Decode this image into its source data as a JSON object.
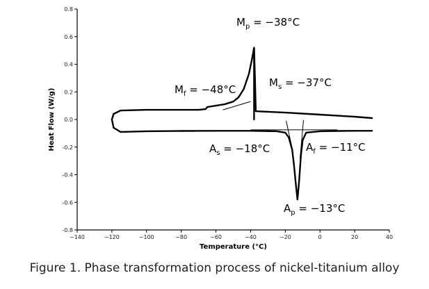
{
  "caption": "Figure 1. Phase transformation process of nickel-titanium alloy",
  "chart_data": {
    "type": "line",
    "title": "",
    "xlabel": "Temperature (°C)",
    "ylabel": "Heat Flow (W/g)",
    "xlim": [
      -140,
      40
    ],
    "ylim": [
      -0.8,
      0.8
    ],
    "xticks": [
      -140,
      -120,
      -100,
      -80,
      -60,
      -40,
      -20,
      0,
      20,
      40
    ],
    "xtick_labels": [
      "−140",
      "−120",
      "−100",
      "−80",
      "−60",
      "−40",
      "−20",
      "0",
      "20",
      "40"
    ],
    "yticks": [
      0.8,
      0.6,
      0.4,
      0.2,
      0.0,
      -0.2,
      -0.4,
      -0.6,
      -0.8
    ],
    "ytick_labels": [
      "0.8",
      "0.6",
      "0.4",
      "0.2",
      "0.0",
      "-0.2",
      "-0.4",
      "-0.6",
      "-0.8"
    ],
    "grid": false,
    "series": [
      {
        "x": [
          30,
          20,
          0,
          -20,
          -37,
          -37.5,
          -38,
          -39,
          -41,
          -44,
          -47,
          -50,
          -55,
          -60,
          -65,
          -66,
          -70,
          -80,
          -100,
          -115,
          -119,
          -120,
          -119,
          -115
        ],
        "y": [
          0.01,
          0.02,
          0.035,
          0.05,
          0.06,
          0.3,
          0.52,
          0.45,
          0.33,
          0.22,
          0.16,
          0.13,
          0.11,
          0.1,
          0.09,
          0.075,
          0.07,
          0.07,
          0.07,
          0.065,
          0.04,
          0.0,
          -0.06,
          -0.09
        ]
      },
      {
        "x": [
          -115,
          -100,
          -80,
          -60,
          -40,
          -25,
          -20,
          -18,
          -16,
          -15,
          -14,
          -13,
          -12,
          -11,
          -10,
          -8,
          0,
          10,
          20,
          30
        ],
        "y": [
          -0.09,
          -0.085,
          -0.083,
          -0.082,
          -0.082,
          -0.085,
          -0.095,
          -0.13,
          -0.22,
          -0.33,
          -0.46,
          -0.58,
          -0.44,
          -0.26,
          -0.15,
          -0.095,
          -0.085,
          -0.083,
          -0.082,
          -0.082
        ]
      },
      {
        "x": [
          -38,
          -38,
          -38
        ],
        "y": [
          0.52,
          0.2,
          0.0
        ]
      }
    ],
    "tangent_lines": [
      {
        "x": [
          -56,
          -40
        ],
        "y": [
          0.07,
          0.13
        ]
      },
      {
        "x": [
          -19.5,
          -16
        ],
        "y": [
          -0.01,
          -0.21
        ]
      },
      {
        "x": [
          -11.5,
          -9.5
        ],
        "y": [
          -0.28,
          -0.005
        ]
      },
      {
        "x": [
          -40,
          10
        ],
        "y": [
          -0.075,
          -0.075
        ]
      }
    ],
    "annotations": [
      {
        "label": "M",
        "sub": "p",
        "value": " = −38°C"
      },
      {
        "label": "M",
        "sub": "s",
        "value": " = −37°C"
      },
      {
        "label": "M",
        "sub": "f",
        "value": " = −48°C"
      },
      {
        "label": "A",
        "sub": "s",
        "value": " = −18°C"
      },
      {
        "label": "A",
        "sub": "f",
        "value": " = −11°C"
      },
      {
        "label": "A",
        "sub": "p",
        "value": " = −13°C"
      }
    ]
  }
}
